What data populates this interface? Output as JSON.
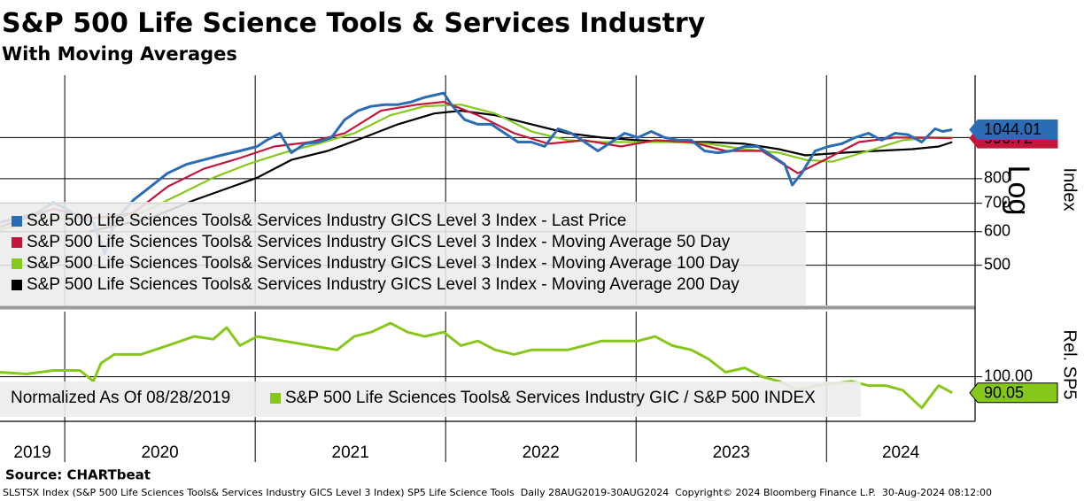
{
  "header": {
    "title": "S&P 500 Life Science Tools & Services Industry",
    "subtitle": "With Moving Averages"
  },
  "chart_data": [
    {
      "type": "line",
      "log": true,
      "grid": true,
      "legend": "bottom-left",
      "ylim": [
        402,
        1403
      ],
      "yticks": [
        500,
        600,
        700,
        800,
        1000
      ],
      "xlim": [
        2019.66,
        2024.78
      ],
      "xticks": [
        2020,
        2021,
        2022,
        2023,
        2024
      ],
      "axis_label": "Index",
      "scale_label": "Log",
      "series": [
        {
          "name": "S&P 500 Life Sciences Tools& Services Industry GICS Level 3 Index - Last Price",
          "color": "#2b6cb5",
          "tag": true,
          "x": [
            2019.66,
            2019.75,
            2019.85,
            2019.94,
            2020.01,
            2020.08,
            2020.15,
            2020.21,
            2020.26,
            2020.36,
            2020.45,
            2020.54,
            2020.64,
            2020.73,
            2020.82,
            2020.92,
            2021.01,
            2021.06,
            2021.13,
            2021.19,
            2021.26,
            2021.33,
            2021.4,
            2021.47,
            2021.54,
            2021.61,
            2021.68,
            2021.75,
            2021.82,
            2021.89,
            2021.99,
            2022.03,
            2022.1,
            2022.17,
            2022.24,
            2022.31,
            2022.38,
            2022.45,
            2022.52,
            2022.59,
            2022.66,
            2022.73,
            2022.8,
            2022.87,
            2022.94,
            2023.01,
            2023.08,
            2023.15,
            2023.22,
            2023.29,
            2023.36,
            2023.43,
            2023.5,
            2023.57,
            2023.64,
            2023.71,
            2023.78,
            2023.82,
            2023.87,
            2023.94,
            2024.01,
            2024.08,
            2024.15,
            2024.22,
            2024.29,
            2024.36,
            2024.43,
            2024.5,
            2024.57,
            2024.61,
            2024.66
          ],
          "values": [
            631,
            646,
            663,
            702,
            679,
            646,
            631,
            532,
            631,
            712,
            766,
            824,
            865,
            886,
            908,
            930,
            953,
            986,
            1024,
            921,
            967,
            976,
            1000,
            1102,
            1157,
            1185,
            1196,
            1196,
            1214,
            1244,
            1274,
            1196,
            1102,
            1075,
            1075,
            1024,
            976,
            976,
            953,
            1049,
            1024,
            976,
            930,
            976,
            1024,
            1000,
            1034,
            1000,
            986,
            986,
            930,
            921,
            930,
            953,
            953,
            908,
            865,
            773,
            824,
            930,
            953,
            967,
            1000,
            1024,
            986,
            1024,
            1015,
            976,
            1049,
            1034,
            1044.01
          ]
        },
        {
          "name": "S&P 500 Life Sciences Tools& Services Industry GICS Level 3 Index - Moving Average 50 Day",
          "color": "#c3163a",
          "tag": true,
          "x": [
            2019.66,
            2019.94,
            2020.15,
            2020.36,
            2020.54,
            2020.73,
            2020.92,
            2021.1,
            2021.29,
            2021.47,
            2021.66,
            2021.85,
            2021.99,
            2022.17,
            2022.36,
            2022.54,
            2022.73,
            2022.92,
            2023.1,
            2023.29,
            2023.47,
            2023.66,
            2023.85,
            2023.99,
            2024.17,
            2024.36,
            2024.5,
            2024.66
          ],
          "values": [
            616,
            679,
            646,
            663,
            766,
            844,
            895,
            953,
            976,
            1024,
            1157,
            1196,
            1214,
            1129,
            1024,
            967,
            986,
            953,
            986,
            976,
            930,
            930,
            824,
            886,
            976,
            1000,
            1000,
            996.72
          ]
        },
        {
          "name": "S&P 500 Life Sciences Tools& Services Industry GICS Level 3 Index - Moving Average 100 Day",
          "color": "#84c91c",
          "x": [
            2019.66,
            2019.94,
            2020.22,
            2020.4,
            2020.59,
            2020.78,
            2020.96,
            2021.15,
            2021.33,
            2021.52,
            2021.71,
            2021.89,
            2022.08,
            2022.26,
            2022.45,
            2022.64,
            2022.82,
            2023.01,
            2023.19,
            2023.38,
            2023.57,
            2023.75,
            2023.89,
            2024.03,
            2024.22,
            2024.4,
            2024.54,
            2024.66
          ],
          "values": [
            607,
            646,
            646,
            663,
            730,
            804,
            865,
            921,
            967,
            1024,
            1129,
            1185,
            1196,
            1140,
            1034,
            986,
            976,
            976,
            976,
            967,
            939,
            921,
            886,
            877,
            930,
            986,
            1000,
            1000
          ]
        },
        {
          "name": "S&P 500 Life Sciences Tools& Services Industry GICS Level 3 Index - Moving Average 200 Day",
          "color": "#000000",
          "x": [
            2020.13,
            2020.45,
            2020.68,
            2021.01,
            2021.19,
            2021.38,
            2021.57,
            2021.75,
            2021.94,
            2022.08,
            2022.26,
            2022.45,
            2022.64,
            2022.82,
            2023.01,
            2023.19,
            2023.38,
            2023.57,
            2023.75,
            2023.89,
            2024.08,
            2024.26,
            2024.45,
            2024.59,
            2024.66
          ],
          "values": [
            601,
            646,
            712,
            804,
            886,
            930,
            1000,
            1075,
            1140,
            1157,
            1129,
            1075,
            1024,
            1000,
            986,
            976,
            976,
            967,
            939,
            908,
            921,
            930,
            939,
            953,
            976
          ]
        }
      ]
    },
    {
      "type": "line",
      "log": false,
      "grid": true,
      "ylim": [
        72.4,
        140.3
      ],
      "yticks": [
        {
          "value": 100,
          "label": "100.00"
        }
      ],
      "xlim": [
        2019.66,
        2024.78
      ],
      "xticks": [
        2020,
        2021,
        2022,
        2023,
        2024
      ],
      "x_labels": [
        "2019",
        "2020",
        "2021",
        "2022",
        "2023",
        "2024"
      ],
      "axis_label": "Rel. SP5",
      "note": "Normalized As Of 08/28/2019",
      "series": [
        {
          "name": "S&P 500 Life Sciences Tools& Services Industry GIC / S&P 500 INDEX",
          "color": "#86c81a",
          "tag": true,
          "x": [
            2019.66,
            2019.8,
            2019.94,
            2020.08,
            2020.15,
            2020.19,
            2020.26,
            2020.4,
            2020.54,
            2020.68,
            2020.78,
            2020.85,
            2020.92,
            2021.01,
            2021.15,
            2021.29,
            2021.43,
            2021.52,
            2021.61,
            2021.71,
            2021.8,
            2021.89,
            2021.99,
            2022.08,
            2022.17,
            2022.26,
            2022.36,
            2022.45,
            2022.54,
            2022.64,
            2022.73,
            2022.82,
            2022.92,
            2023.01,
            2023.1,
            2023.19,
            2023.29,
            2023.38,
            2023.47,
            2023.57,
            2023.66,
            2023.75,
            2023.85,
            2023.94,
            2024.03,
            2024.13,
            2024.22,
            2024.31,
            2024.4,
            2024.5,
            2024.57,
            2024.59,
            2024.66
          ],
          "values": [
            102.8,
            101.7,
            103.9,
            103.9,
            97.2,
            108.3,
            113.8,
            113.8,
            119.3,
            124.9,
            123.2,
            130.4,
            119.3,
            124.9,
            122.1,
            119.3,
            116.6,
            124.9,
            127.6,
            133.1,
            127.6,
            124.9,
            127.6,
            119.3,
            122.1,
            116.6,
            113.8,
            116.6,
            116.6,
            116.6,
            119.3,
            122.1,
            122.1,
            122.1,
            124.9,
            119.3,
            116.6,
            111.0,
            102.8,
            105.5,
            100,
            97.2,
            91.7,
            94.5,
            95.6,
            97.2,
            94.5,
            94.5,
            91.7,
            80.7,
            91.7,
            94.5,
            90.05
          ]
        }
      ]
    }
  ],
  "footer": {
    "source": "Source: CHARTbeat",
    "info": "SLSTSX Index (S&P 500 Life Sciences Tools& Services Industry GICS Level 3 Index) SP5 Life Science Tools  Daily 28AUG2019-30AUG2024  Copyright© 2024 Bloomberg Finance L.P.  30-Aug-2024 08:12:00"
  }
}
